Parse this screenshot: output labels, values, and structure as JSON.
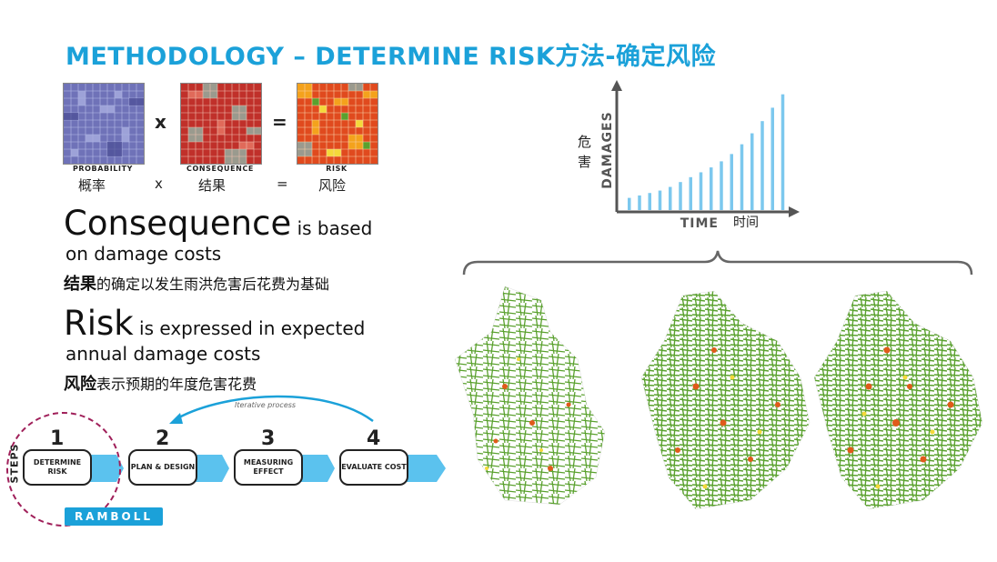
{
  "title": "METHODOLOGY – DETERMINE RISK方法-确定风险",
  "formula": {
    "tiles": [
      {
        "label": "PROBABILITY",
        "cn": "概率"
      },
      {
        "label": "CONSEQUENCE",
        "cn": "结果"
      },
      {
        "label": "RISK",
        "cn": "风险"
      }
    ],
    "op_times": "x",
    "op_equals": "=",
    "cn_times": "x",
    "cn_equals": "="
  },
  "consequence": {
    "big": "Consequence",
    "rest1": " is based",
    "rest2": "on damage costs",
    "cn_bold": "结果",
    "cn_rest": "的确定以发生雨洪危害后花费为基础"
  },
  "risk": {
    "big": "Risk",
    "rest1": " is expressed in expected",
    "rest2": "annual damage costs",
    "cn_bold": "风险",
    "cn_rest": "表示预期的年度危害花费"
  },
  "steps": {
    "axis_label": "STEPS",
    "iterative": "Iterative process",
    "items": [
      {
        "num": "1",
        "label": "DETERMINE RISK"
      },
      {
        "num": "2",
        "label": "PLAN & DESIGN"
      },
      {
        "num": "3",
        "label": "MEASURING EFFECT"
      },
      {
        "num": "4",
        "label": "EVALUATE COST"
      }
    ]
  },
  "logo": "RAMBOLL",
  "chart_data": {
    "type": "bar",
    "ylabel": "DAMAGES",
    "ylabel_cn": "危害",
    "xlabel": "TIME",
    "xlabel_cn": "时间",
    "values": [
      1.0,
      1.2,
      1.4,
      1.6,
      1.9,
      2.3,
      2.7,
      3.1,
      3.5,
      4.0,
      4.6,
      5.4,
      6.3,
      7.3,
      8.4,
      9.5
    ],
    "bar_color": "#7cc8ee",
    "ylim": [
      0,
      10
    ]
  },
  "colors": {
    "accent": "#1ba1d9",
    "bar": "#7cc8ee",
    "map_green": "#5aa12e",
    "map_hot": "#e05a1a",
    "circle": "#a0205a"
  }
}
